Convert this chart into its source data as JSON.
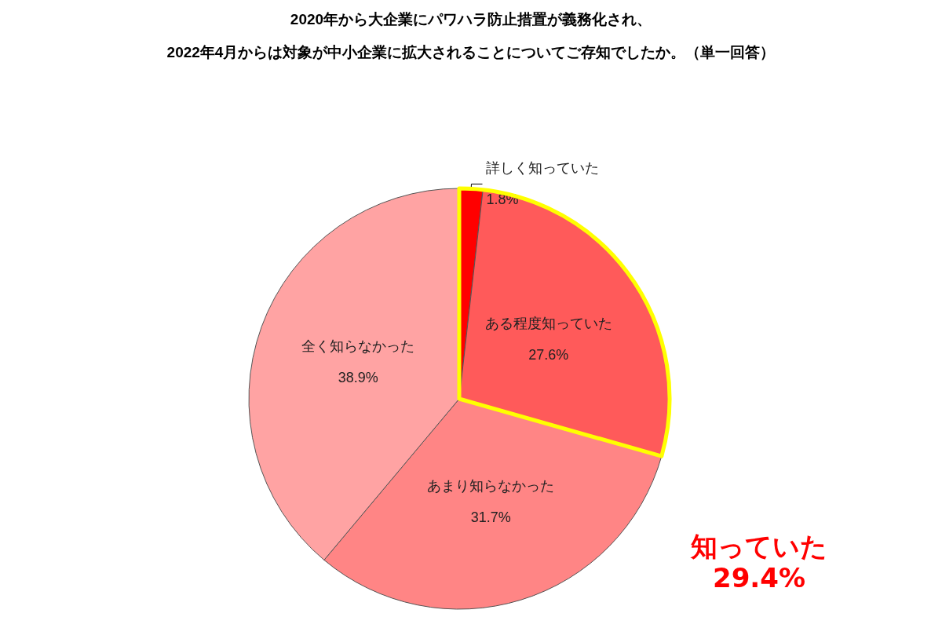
{
  "chart_data": {
    "type": "pie",
    "title": "2020年から大企業にパワハラ防止措置が義務化され、",
    "subtitle": "2022年4月からは対象が中小企業に拡大されることについてご存知でしたか。（単一回答）",
    "categories": [
      "詳しく知っていた",
      "ある程度知っていた",
      "あまり知らなかった",
      "全く知らなかった"
    ],
    "values": [
      1.8,
      27.6,
      31.7,
      38.9
    ],
    "value_labels": [
      "1.8%",
      "27.6%",
      "31.7%",
      "38.9%"
    ],
    "colors": [
      "#ff0000",
      "#ff5a5a",
      "#ff8585",
      "#ffa3a3"
    ],
    "annotations": [
      "知っていた\n29.4%"
    ],
    "legend": false
  }
}
